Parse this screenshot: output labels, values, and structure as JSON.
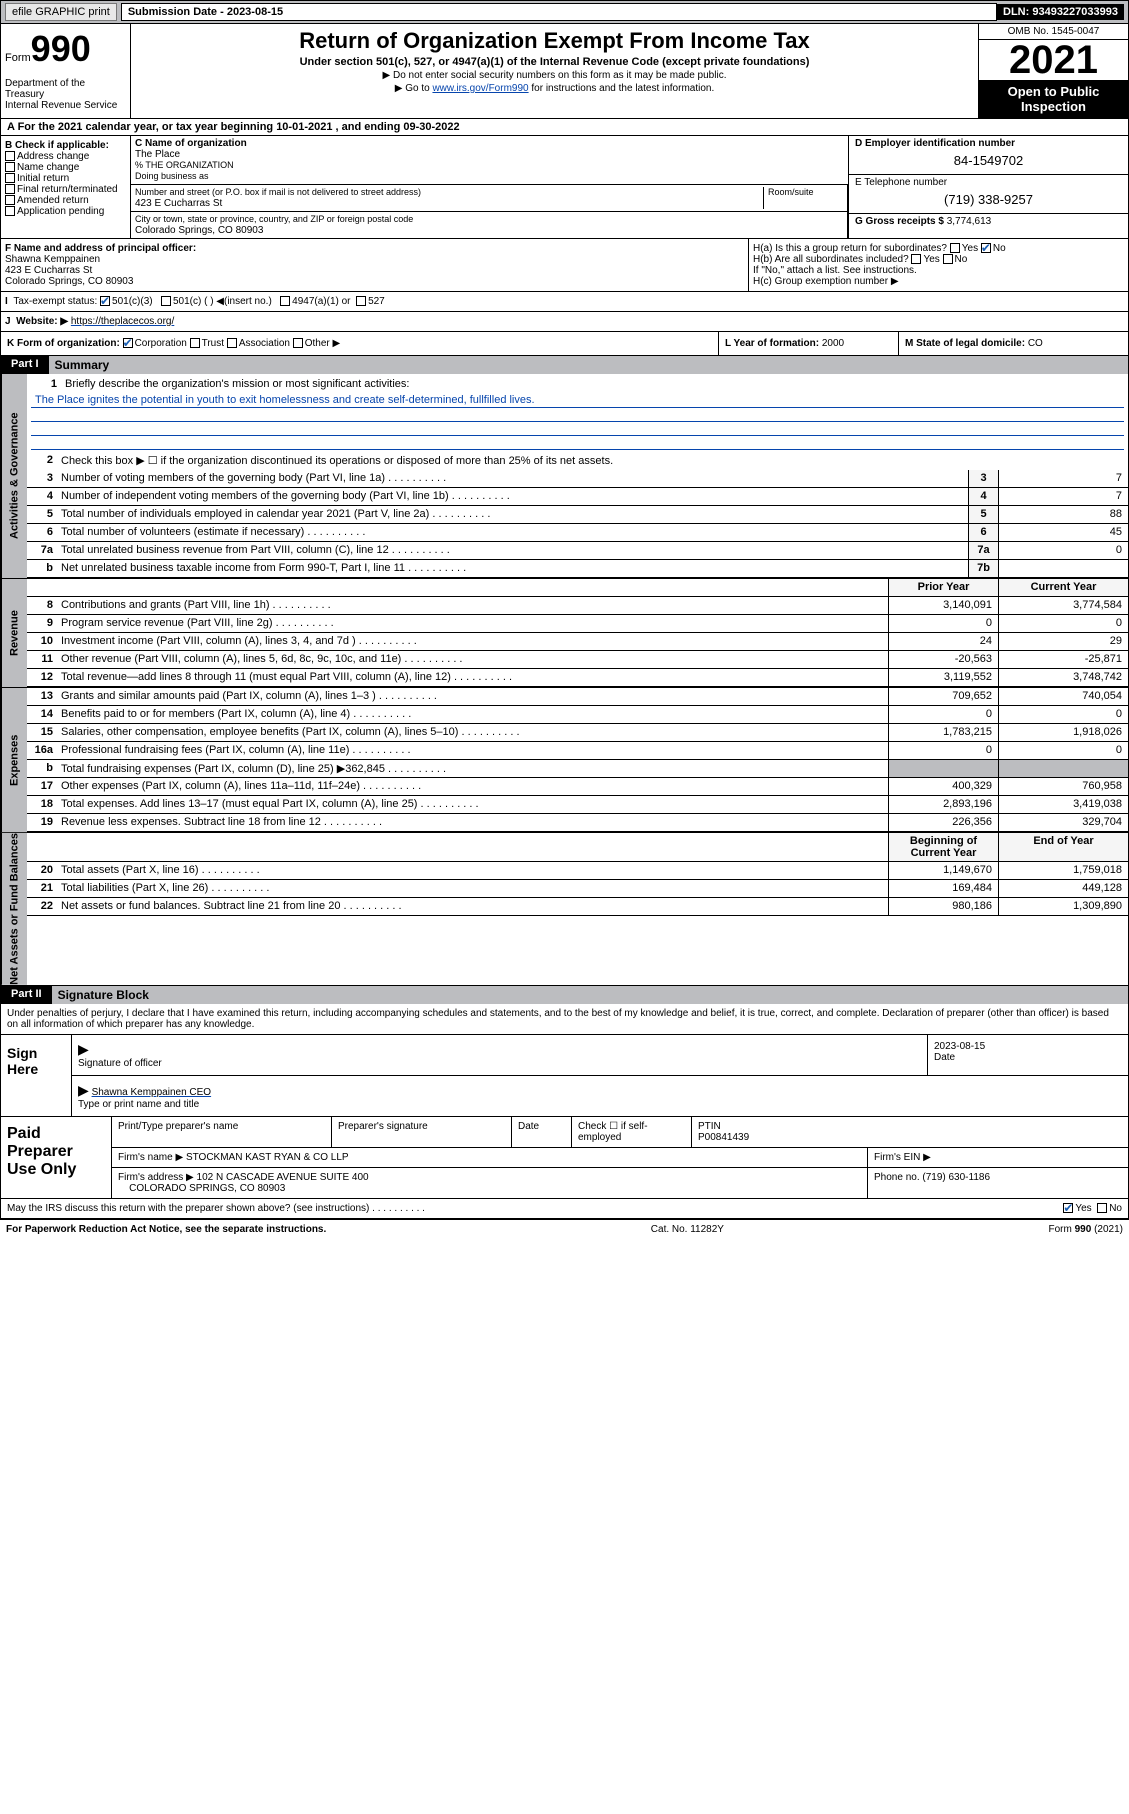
{
  "topbar": {
    "efile": "efile GRAPHIC print",
    "sub_label": "Submission Date - 2023-08-15",
    "dln": "DLN: 93493227033993"
  },
  "header": {
    "form_word": "Form",
    "form_num": "990",
    "dept": "Department of the Treasury\nInternal Revenue Service",
    "title": "Return of Organization Exempt From Income Tax",
    "subtitle": "Under section 501(c), 527, or 4947(a)(1) of the Internal Revenue Code (except private foundations)",
    "instr1": "▶ Do not enter social security numbers on this form as it may be made public.",
    "instr2_pre": "▶ Go to ",
    "instr2_link": "www.irs.gov/Form990",
    "instr2_post": " for instructions and the latest information.",
    "omb": "OMB No. 1545-0047",
    "year": "2021",
    "open": "Open to Public Inspection"
  },
  "rowA": "A For the 2021 calendar year, or tax year beginning 10-01-2021   , and ending 09-30-2022",
  "colB": {
    "label": "B Check if applicable:",
    "items": [
      "Address change",
      "Name change",
      "Initial return",
      "Final return/terminated",
      "Amended return",
      "Application pending"
    ]
  },
  "colC": {
    "name_label": "C Name of organization",
    "name": "The Place",
    "pct_label": "% THE ORGANIZATION",
    "dba_label": "Doing business as",
    "street_label": "Number and street (or P.O. box if mail is not delivered to street address)",
    "room_label": "Room/suite",
    "street": "423 E Cucharras St",
    "city_label": "City or town, state or province, country, and ZIP or foreign postal code",
    "city": "Colorado Springs, CO  80903"
  },
  "colD": {
    "ein_label": "D Employer identification number",
    "ein": "84-1549702",
    "phone_label": "E Telephone number",
    "phone": "(719) 338-9257",
    "gross_label": "G Gross receipts $ ",
    "gross": "3,774,613"
  },
  "rowF": {
    "label": "F  Name and address of principal officer:",
    "name": "Shawna Kemppainen",
    "addr1": "423 E Cucharras St",
    "addr2": "Colorado Springs, CO  80903"
  },
  "rowH": {
    "ha": "H(a)  Is this a group return for subordinates?",
    "hb": "H(b)  Are all subordinates included?",
    "hb_note": "If \"No,\" attach a list. See instructions.",
    "hc": "H(c)  Group exemption number ▶"
  },
  "rowI": {
    "label": "Tax-exempt status:",
    "c3": "501(c)(3)",
    "c": "501(c) (  ) ◀(insert no.)",
    "a1": "4947(a)(1) or",
    "s527": "527"
  },
  "rowJ": {
    "label": "Website: ▶",
    "url": "https://theplacecos.org/"
  },
  "rowK": {
    "label": "K Form of organization:",
    "corp": "Corporation",
    "trust": "Trust",
    "assoc": "Association",
    "other": "Other ▶"
  },
  "rowL": {
    "label": "L Year of formation: ",
    "val": "2000"
  },
  "rowM": {
    "label": "M State of legal domicile: ",
    "val": "CO"
  },
  "part1": {
    "hdr": "Part I",
    "title": "Summary",
    "tab_gov": "Activities & Governance",
    "tab_rev": "Revenue",
    "tab_exp": "Expenses",
    "tab_net": "Net Assets or Fund Balances",
    "l1_label": "Briefly describe the organization's mission or most significant activities:",
    "l1_text": "The Place ignites the potential in youth to exit homelessness and create self-determined, fullfilled lives.",
    "l2": "Check this box ▶ ☐  if the organization discontinued its operations or disposed of more than 25% of its net assets.",
    "lines_gov": [
      {
        "n": "3",
        "t": "Number of voting members of the governing body (Part VI, line 1a)",
        "c": "3",
        "v": "7"
      },
      {
        "n": "4",
        "t": "Number of independent voting members of the governing body (Part VI, line 1b)",
        "c": "4",
        "v": "7"
      },
      {
        "n": "5",
        "t": "Total number of individuals employed in calendar year 2021 (Part V, line 2a)",
        "c": "5",
        "v": "88"
      },
      {
        "n": "6",
        "t": "Total number of volunteers (estimate if necessary)",
        "c": "6",
        "v": "45"
      },
      {
        "n": "7a",
        "t": "Total unrelated business revenue from Part VIII, column (C), line 12",
        "c": "7a",
        "v": "0"
      },
      {
        "n": "b",
        "t": "Net unrelated business taxable income from Form 990-T, Part I, line 11",
        "c": "7b",
        "v": ""
      }
    ],
    "col_prior": "Prior Year",
    "col_current": "Current Year",
    "col_beg": "Beginning of Current Year",
    "col_end": "End of Year",
    "lines_rev": [
      {
        "n": "8",
        "t": "Contributions and grants (Part VIII, line 1h)",
        "p": "3,140,091",
        "c": "3,774,584"
      },
      {
        "n": "9",
        "t": "Program service revenue (Part VIII, line 2g)",
        "p": "0",
        "c": "0"
      },
      {
        "n": "10",
        "t": "Investment income (Part VIII, column (A), lines 3, 4, and 7d )",
        "p": "24",
        "c": "29"
      },
      {
        "n": "11",
        "t": "Other revenue (Part VIII, column (A), lines 5, 6d, 8c, 9c, 10c, and 11e)",
        "p": "-20,563",
        "c": "-25,871"
      },
      {
        "n": "12",
        "t": "Total revenue—add lines 8 through 11 (must equal Part VIII, column (A), line 12)",
        "p": "3,119,552",
        "c": "3,748,742"
      }
    ],
    "lines_exp": [
      {
        "n": "13",
        "t": "Grants and similar amounts paid (Part IX, column (A), lines 1–3 )",
        "p": "709,652",
        "c": "740,054"
      },
      {
        "n": "14",
        "t": "Benefits paid to or for members (Part IX, column (A), line 4)",
        "p": "0",
        "c": "0"
      },
      {
        "n": "15",
        "t": "Salaries, other compensation, employee benefits (Part IX, column (A), lines 5–10)",
        "p": "1,783,215",
        "c": "1,918,026"
      },
      {
        "n": "16a",
        "t": "Professional fundraising fees (Part IX, column (A), line 11e)",
        "p": "0",
        "c": "0"
      },
      {
        "n": "b",
        "t": "Total fundraising expenses (Part IX, column (D), line 25) ▶362,845",
        "p": "",
        "c": ""
      },
      {
        "n": "17",
        "t": "Other expenses (Part IX, column (A), lines 11a–11d, 11f–24e)",
        "p": "400,329",
        "c": "760,958"
      },
      {
        "n": "18",
        "t": "Total expenses. Add lines 13–17 (must equal Part IX, column (A), line 25)",
        "p": "2,893,196",
        "c": "3,419,038"
      },
      {
        "n": "19",
        "t": "Revenue less expenses. Subtract line 18 from line 12",
        "p": "226,356",
        "c": "329,704"
      }
    ],
    "lines_net": [
      {
        "n": "20",
        "t": "Total assets (Part X, line 16)",
        "p": "1,149,670",
        "c": "1,759,018"
      },
      {
        "n": "21",
        "t": "Total liabilities (Part X, line 26)",
        "p": "169,484",
        "c": "449,128"
      },
      {
        "n": "22",
        "t": "Net assets or fund balances. Subtract line 21 from line 20",
        "p": "980,186",
        "c": "1,309,890"
      }
    ]
  },
  "part2": {
    "hdr": "Part II",
    "title": "Signature Block",
    "decl": "Under penalties of perjury, I declare that I have examined this return, including accompanying schedules and statements, and to the best of my knowledge and belief, it is true, correct, and complete. Declaration of preparer (other than officer) is based on all information of which preparer has any knowledge.",
    "sign_here": "Sign Here",
    "sig_officer": "Signature of officer",
    "sig_date_label": "Date",
    "sig_date": "2023-08-15",
    "officer_name": "Shawna Kemppainen CEO",
    "type_name": "Type or print name and title",
    "paid_label": "Paid Preparer Use Only",
    "prep_name_label": "Print/Type preparer's name",
    "prep_sig_label": "Preparer's signature",
    "date_label": "Date",
    "check_self": "Check ☐ if self-employed",
    "ptin_label": "PTIN",
    "ptin": "P00841439",
    "firm_name_label": "Firm's name    ▶",
    "firm_name": "STOCKMAN KAST RYAN & CO LLP",
    "firm_ein_label": "Firm's EIN ▶",
    "firm_addr_label": "Firm's address ▶",
    "firm_addr1": "102 N CASCADE AVENUE SUITE 400",
    "firm_addr2": "COLORADO SPRINGS, CO  80903",
    "firm_phone_label": "Phone no. ",
    "firm_phone": "(719) 630-1186",
    "discuss": "May the IRS discuss this return with the preparer shown above? (see instructions)"
  },
  "footer": {
    "left": "For Paperwork Reduction Act Notice, see the separate instructions.",
    "mid": "Cat. No. 11282Y",
    "right": "Form 990 (2021)"
  }
}
